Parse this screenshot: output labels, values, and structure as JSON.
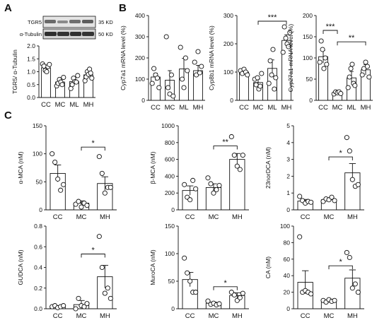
{
  "figure": {
    "panel_letters": [
      "A",
      "B",
      "C"
    ]
  },
  "blot": {
    "rows": [
      {
        "label": "TGR5",
        "kd": "35 KD"
      },
      {
        "label": "α-Tubulin",
        "kd": "50 KD"
      }
    ]
  },
  "chart_data": [
    {
      "id": "A",
      "type": "bar",
      "categories": [
        "CC",
        "MC",
        "ML",
        "MH"
      ],
      "values": [
        1.15,
        0.6,
        0.62,
        0.88
      ],
      "errors": [
        0.1,
        0.1,
        0.12,
        0.12
      ],
      "points": [
        [
          1.3,
          1.22,
          1.05,
          1.0,
          1.2,
          1.28
        ],
        [
          0.45,
          0.55,
          0.7,
          0.6,
          0.5,
          0.78
        ],
        [
          0.35,
          0.5,
          0.75,
          0.62,
          0.6,
          0.85
        ],
        [
          0.65,
          0.8,
          1.0,
          0.9,
          1.1,
          0.95,
          0.75
        ]
      ],
      "ylabel": "TGR5/ α-Tubulin",
      "ylim": [
        0,
        2.0
      ],
      "yticks": [
        0.0,
        0.5,
        1.0,
        1.5,
        2.0
      ],
      "sig": []
    },
    {
      "id": "B1",
      "type": "bar",
      "categories": [
        "CC",
        "MC",
        "ML",
        "MH"
      ],
      "values": [
        110,
        95,
        148,
        140
      ],
      "errors": [
        18,
        45,
        50,
        25
      ],
      "points": [
        [
          80,
          150,
          120,
          105,
          60
        ],
        [
          300,
          60,
          30,
          120,
          20
        ],
        [
          250,
          100,
          60,
          200,
          140
        ],
        [
          180,
          120,
          230,
          130,
          160
        ]
      ],
      "ylabel": "Cyp7a1 mRNA level (%)",
      "ylim": [
        0,
        400
      ],
      "yticks": [
        0,
        100,
        200,
        300,
        400
      ],
      "sig": []
    },
    {
      "id": "B2",
      "type": "bar",
      "categories": [
        "CC",
        "MC",
        "ML",
        "MH"
      ],
      "values": [
        100,
        63,
        113,
        212
      ],
      "errors": [
        5,
        12,
        30,
        20
      ],
      "points": [
        [
          105,
          95,
          110,
          100,
          90
        ],
        [
          75,
          55,
          80,
          40,
          50,
          95
        ],
        [
          60,
          140,
          90,
          180,
          40,
          80
        ],
        [
          170,
          260,
          220,
          200,
          190,
          240
        ]
      ],
      "ylabel": "Cyp8b1 mRNA level (%)",
      "ylim": [
        0,
        300
      ],
      "yticks": [
        0,
        100,
        200,
        300
      ],
      "sig": [
        {
          "from": 1,
          "to": 3,
          "y": 280,
          "label": "***"
        }
      ]
    },
    {
      "id": "B3",
      "type": "bar",
      "categories": [
        "CC",
        "MC",
        "ML",
        "MH"
      ],
      "values": [
        103,
        18,
        53,
        72
      ],
      "errors": [
        15,
        3,
        15,
        12
      ],
      "points": [
        [
          90,
          140,
          120,
          75,
          100,
          85
        ],
        [
          15,
          20,
          18,
          20,
          16
        ],
        [
          30,
          55,
          75,
          85,
          40,
          35
        ],
        [
          60,
          75,
          90,
          80,
          55
        ]
      ],
      "ylabel": "Cyp27a1 mRNA level (%)",
      "ylim": [
        0,
        200
      ],
      "yticks": [
        0,
        50,
        100,
        150,
        200
      ],
      "sig": [
        {
          "from": 0,
          "to": 1,
          "y": 165,
          "label": "***"
        },
        {
          "from": 1,
          "to": 3,
          "y": 138,
          "label": "**"
        }
      ]
    },
    {
      "id": "C1",
      "type": "bar",
      "categories": [
        "CC",
        "MC",
        "MH"
      ],
      "values": [
        65,
        12,
        47
      ],
      "errors": [
        15,
        4,
        12
      ],
      "points": [
        [
          100,
          85,
          55,
          35,
          45
        ],
        [
          10,
          15,
          5,
          12,
          8
        ],
        [
          95,
          65,
          30,
          40,
          40
        ]
      ],
      "ylabel": "α-MCA (nM)",
      "ylim": [
        0,
        150
      ],
      "yticks": [
        0,
        50,
        100,
        150
      ],
      "sig": [
        {
          "from": 1,
          "to": 2,
          "y": 112,
          "label": "*"
        }
      ]
    },
    {
      "id": "C2",
      "type": "bar",
      "categories": [
        "CC",
        "MC",
        "MH"
      ],
      "values": [
        230,
        265,
        600
      ],
      "errors": [
        55,
        45,
        70
      ],
      "points": [
        [
          300,
          150,
          120,
          350,
          250
        ],
        [
          380,
          310,
          200,
          240,
          290
        ],
        [
          870,
          650,
          520,
          480,
          650
        ]
      ],
      "ylabel": "β-MCA (nM)",
      "ylim": [
        0,
        1000
      ],
      "yticks": [
        0,
        200,
        400,
        600,
        800,
        1000
      ],
      "sig": [
        {
          "from": 1,
          "to": 2,
          "y": 760,
          "label": "**"
        }
      ]
    },
    {
      "id": "C3",
      "type": "bar",
      "categories": [
        "CC",
        "MC",
        "MH"
      ],
      "values": [
        0.52,
        0.6,
        2.2
      ],
      "errors": [
        0.1,
        0.06,
        0.55
      ],
      "points": [
        [
          0.8,
          0.55,
          0.4,
          0.5,
          0.45
        ],
        [
          0.5,
          0.65,
          0.6,
          0.75,
          0.55
        ],
        [
          4.3,
          3.5,
          1.8,
          1.4,
          1.5
        ]
      ],
      "ylabel": "23norDCA (nM)",
      "ylim": [
        0,
        5
      ],
      "yticks": [
        0,
        1,
        2,
        3,
        4,
        5
      ],
      "sig": [
        {
          "from": 1,
          "to": 2,
          "y": 3.15,
          "label": "*"
        }
      ]
    },
    {
      "id": "C4",
      "type": "bar",
      "categories": [
        "CC",
        "MC",
        "MH"
      ],
      "values": [
        0.02,
        0.04,
        0.31
      ],
      "errors": [
        0.01,
        0.04,
        0.11
      ],
      "points": [
        [
          0.02,
          0.03,
          0.01,
          0.02,
          0.03
        ],
        [
          0.0,
          0.1,
          0.03,
          0.02,
          0.05
        ],
        [
          0.7,
          0.4,
          0.15,
          0.2,
          0.1
        ]
      ],
      "ylabel": "GUDCA (nM)",
      "ylim": [
        0,
        0.8
      ],
      "yticks": [
        0.0,
        0.2,
        0.4,
        0.6,
        0.8
      ],
      "sig": [
        {
          "from": 1,
          "to": 2,
          "y": 0.53,
          "label": "*"
        }
      ]
    },
    {
      "id": "C5",
      "type": "bar",
      "categories": [
        "CC",
        "MC",
        "MH"
      ],
      "values": [
        53,
        10,
        24
      ],
      "errors": [
        13,
        2,
        5
      ],
      "points": [
        [
          92,
          65,
          50,
          30,
          30
        ],
        [
          14,
          8,
          10,
          7,
          9
        ],
        [
          30,
          25,
          15,
          20,
          28
        ]
      ],
      "ylabel": "MuroCA (nM)",
      "ylim": [
        0,
        150
      ],
      "yticks": [
        0,
        50,
        100,
        150
      ],
      "sig": [
        {
          "from": 1,
          "to": 2,
          "y": 40,
          "label": "*"
        }
      ]
    },
    {
      "id": "C6",
      "type": "bar",
      "categories": [
        "CC",
        "MC",
        "MH"
      ],
      "values": [
        32,
        9,
        37
      ],
      "errors": [
        14,
        1.5,
        10
      ],
      "points": [
        [
          87,
          20,
          22,
          20,
          18
        ],
        [
          10,
          8,
          11,
          9,
          10
        ],
        [
          68,
          62,
          25,
          30,
          20
        ]
      ],
      "ylabel": "CA (nM)",
      "ylim": [
        0,
        100
      ],
      "yticks": [
        0,
        20,
        40,
        60,
        80,
        100
      ],
      "sig": [
        {
          "from": 1,
          "to": 2,
          "y": 52,
          "label": "*"
        }
      ]
    }
  ]
}
